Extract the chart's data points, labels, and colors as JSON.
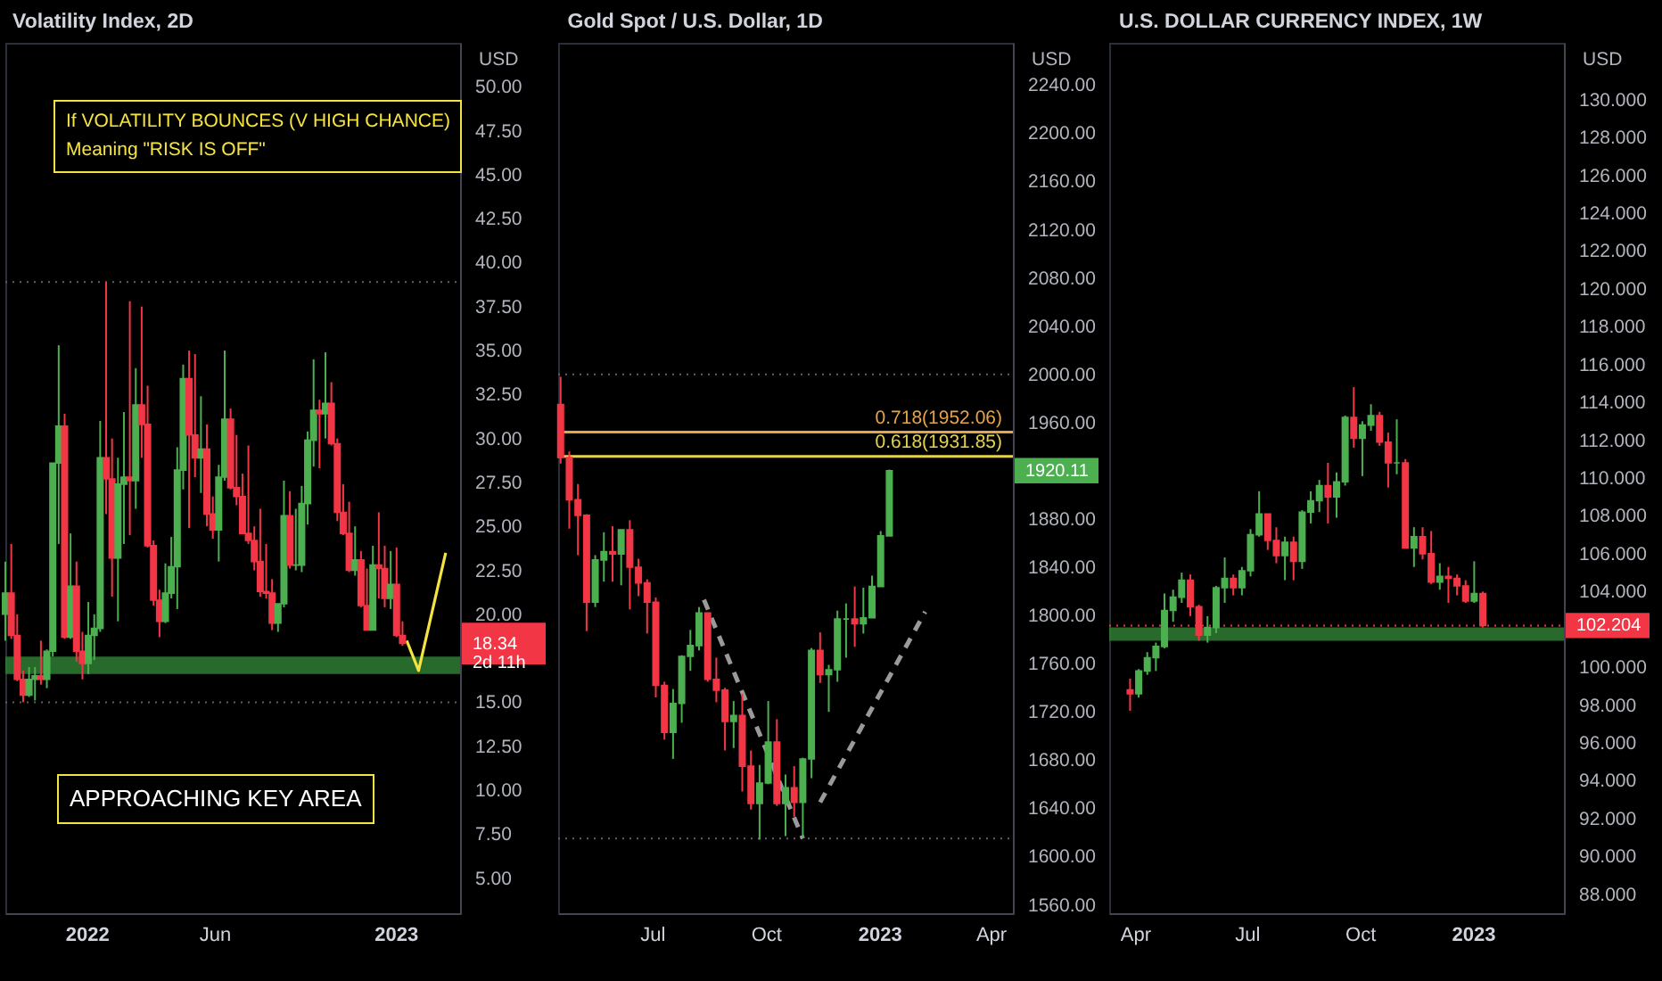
{
  "chart_data": [
    {
      "type": "candlestick",
      "title": "Volatility Index, 2D",
      "ylabel": "USD",
      "x": [
        "2021-09-27",
        "2021-10-04",
        "2021-10-11",
        "2021-10-18",
        "2021-10-25",
        "2021-11-01",
        "2021-11-08",
        "2021-11-15",
        "2021-11-22",
        "2021-11-29",
        "2021-12-06",
        "2021-12-13",
        "2021-12-20",
        "2021-12-27",
        "2022-01-03",
        "2022-01-10",
        "2022-01-17",
        "2022-01-24",
        "2022-01-31",
        "2022-02-07",
        "2022-02-14",
        "2022-02-21",
        "2022-02-28",
        "2022-03-07",
        "2022-03-14",
        "2022-03-21",
        "2022-03-28",
        "2022-04-04",
        "2022-04-11",
        "2022-04-18",
        "2022-04-25",
        "2022-05-02",
        "2022-05-09",
        "2022-05-16",
        "2022-05-23",
        "2022-05-30",
        "2022-06-06",
        "2022-06-13",
        "2022-06-20",
        "2022-06-27",
        "2022-07-04",
        "2022-07-11",
        "2022-07-18",
        "2022-07-25",
        "2022-08-01",
        "2022-08-08",
        "2022-08-15",
        "2022-08-22",
        "2022-08-29",
        "2022-09-05",
        "2022-09-12",
        "2022-09-19",
        "2022-09-26",
        "2022-10-03",
        "2022-10-10",
        "2022-10-17",
        "2022-10-24",
        "2022-10-31",
        "2022-11-07",
        "2022-11-14",
        "2022-11-21",
        "2022-11-28",
        "2022-12-05",
        "2022-12-12",
        "2022-12-19",
        "2022-12-26",
        "2023-01-02",
        "2023-01-09"
      ],
      "ohlc": [
        [
          20.0,
          23.0,
          18.5,
          21.2
        ],
        [
          21.2,
          24.0,
          18.6,
          18.8
        ],
        [
          18.8,
          20.0,
          16.2,
          16.3
        ],
        [
          16.3,
          16.8,
          15.0,
          15.4
        ],
        [
          15.4,
          17.0,
          15.3,
          16.3
        ],
        [
          16.3,
          17.0,
          15.1,
          16.5
        ],
        [
          16.5,
          18.5,
          16.0,
          16.3
        ],
        [
          16.3,
          18.0,
          15.8,
          17.9
        ],
        [
          17.9,
          28.6,
          17.6,
          28.6
        ],
        [
          28.6,
          35.3,
          24.0,
          30.7
        ],
        [
          30.7,
          31.4,
          18.6,
          18.7
        ],
        [
          18.7,
          24.6,
          18.6,
          21.6
        ],
        [
          21.6,
          23.0,
          17.3,
          17.9
        ],
        [
          17.9,
          19.0,
          16.3,
          17.2
        ],
        [
          17.2,
          20.7,
          16.6,
          18.8
        ],
        [
          18.8,
          20.0,
          17.4,
          19.2
        ],
        [
          19.2,
          31.0,
          19.0,
          28.9
        ],
        [
          28.9,
          38.9,
          25.7,
          27.7
        ],
        [
          27.7,
          30.0,
          21.0,
          23.2
        ],
        [
          23.2,
          28.9,
          19.6,
          27.4
        ],
        [
          27.4,
          31.5,
          24.0,
          27.8
        ],
        [
          27.8,
          37.8,
          24.5,
          27.6
        ],
        [
          27.6,
          34.0,
          26.0,
          31.9
        ],
        [
          31.9,
          37.5,
          28.9,
          30.8
        ],
        [
          30.8,
          33.0,
          23.8,
          23.9
        ],
        [
          23.9,
          24.2,
          20.5,
          20.8
        ],
        [
          20.8,
          21.4,
          18.7,
          19.6
        ],
        [
          19.6,
          22.9,
          19.5,
          21.2
        ],
        [
          21.2,
          24.4,
          20.9,
          22.7
        ],
        [
          22.7,
          29.5,
          20.3,
          28.2
        ],
        [
          28.2,
          34.2,
          27.1,
          33.4
        ],
        [
          33.4,
          35.0,
          24.9,
          30.2
        ],
        [
          30.2,
          34.8,
          27.8,
          28.9
        ],
        [
          28.9,
          32.4,
          26.9,
          29.4
        ],
        [
          29.4,
          30.8,
          25.0,
          25.7
        ],
        [
          25.7,
          26.7,
          24.3,
          24.8
        ],
        [
          24.8,
          28.5,
          23.0,
          27.8
        ],
        [
          27.8,
          35.0,
          27.6,
          31.1
        ],
        [
          31.1,
          31.7,
          27.1,
          27.2
        ],
        [
          27.2,
          30.2,
          26.2,
          26.7
        ],
        [
          26.7,
          28.0,
          24.6,
          24.6
        ],
        [
          24.6,
          29.6,
          24.0,
          24.2
        ],
        [
          24.2,
          25.0,
          22.5,
          23.0
        ],
        [
          23.0,
          26.0,
          21.0,
          21.3
        ],
        [
          21.3,
          24.0,
          20.9,
          21.2
        ],
        [
          21.2,
          22.0,
          19.1,
          19.5
        ],
        [
          19.5,
          20.6,
          19.0,
          20.6
        ],
        [
          20.6,
          27.6,
          20.4,
          25.6
        ],
        [
          25.6,
          27.0,
          22.6,
          22.8
        ],
        [
          22.8,
          26.0,
          22.5,
          22.8
        ],
        [
          22.8,
          27.3,
          22.4,
          26.3
        ],
        [
          26.3,
          30.4,
          25.1,
          29.9
        ],
        [
          29.9,
          34.5,
          28.4,
          31.6
        ],
        [
          31.6,
          32.2,
          28.3,
          31.4
        ],
        [
          31.4,
          34.9,
          30.0,
          32.0
        ],
        [
          32.0,
          33.2,
          29.6,
          29.7
        ],
        [
          29.7,
          30.0,
          25.3,
          25.8
        ],
        [
          25.8,
          27.4,
          24.5,
          24.6
        ],
        [
          24.6,
          26.4,
          22.4,
          22.5
        ],
        [
          22.5,
          25.0,
          22.2,
          23.1
        ],
        [
          23.1,
          23.6,
          20.4,
          20.5
        ],
        [
          20.5,
          22.6,
          19.1,
          19.1
        ],
        [
          19.1,
          23.9,
          19.1,
          22.8
        ],
        [
          22.8,
          25.8,
          20.9,
          22.6
        ],
        [
          22.6,
          23.9,
          20.4,
          20.9
        ],
        [
          20.9,
          23.6,
          20.3,
          21.7
        ],
        [
          21.7,
          23.8,
          18.7,
          18.8
        ],
        [
          18.8,
          19.6,
          18.2,
          18.34
        ]
      ],
      "series": [
        {
          "type": "line",
          "color": "#f5e342",
          "line_style": "solid",
          "x": [
            "2023-01-14",
            "2023-01-28",
            "2023-03-01"
          ],
          "values": [
            18.5,
            16.8,
            23.5
          ]
        }
      ],
      "xlim": [
        "2021-09-27",
        "2023-03-18"
      ],
      "xticks": [
        {
          "value": "2022-01-01",
          "label": "2022"
        },
        {
          "value": "2022-06-01",
          "label": "Jun"
        },
        {
          "value": "2023-01-01",
          "label": "2023"
        }
      ],
      "ylim": [
        3,
        52.5
      ],
      "yticks": [
        {
          "value": 5,
          "label": "5.00"
        },
        {
          "value": 7.5,
          "label": "7.50"
        },
        {
          "value": 10,
          "label": "10.00"
        },
        {
          "value": 12.5,
          "label": "12.50"
        },
        {
          "value": 15,
          "label": "15.00"
        },
        {
          "value": 20,
          "label": "20.00"
        },
        {
          "value": 22.5,
          "label": "22.50"
        },
        {
          "value": 25,
          "label": "25.00"
        },
        {
          "value": 27.5,
          "label": "27.50"
        },
        {
          "value": 30,
          "label": "30.00"
        },
        {
          "value": 32.5,
          "label": "32.50"
        },
        {
          "value": 35,
          "label": "35.00"
        },
        {
          "value": 37.5,
          "label": "37.50"
        },
        {
          "value": 40,
          "label": "40.00"
        },
        {
          "value": 42.5,
          "label": "42.50"
        },
        {
          "value": 45,
          "label": "45.00"
        },
        {
          "value": 47.5,
          "label": "47.50"
        },
        {
          "value": 50,
          "label": "50.00"
        }
      ],
      "bands": [
        {
          "axis": "y",
          "from": 16.6,
          "to": 17.6,
          "color": "#2e7d32"
        }
      ],
      "ref_lines": [
        {
          "axis": "y",
          "value": 38.9,
          "color": "#5d606b",
          "line_style": "dotted"
        },
        {
          "axis": "y",
          "value": 15,
          "color": "#5d606b",
          "line_style": "dotted"
        }
      ],
      "annotations": [
        "If VOLATILITY BOUNCES (V HIGH CHANCE)",
        "Meaning \"RISK IS OFF\"",
        "APPROACHING KEY AREA",
        "18.34\n2d 11h"
      ]
    },
    {
      "type": "candlestick",
      "title": "Gold Spot / U.S. Dollar, 1D",
      "ylabel": "USD",
      "x": [
        "2022-04-18",
        "2022-04-25",
        "2022-05-02",
        "2022-05-09",
        "2022-05-16",
        "2022-05-23",
        "2022-05-30",
        "2022-06-06",
        "2022-06-13",
        "2022-06-20",
        "2022-06-27",
        "2022-07-04",
        "2022-07-11",
        "2022-07-18",
        "2022-07-25",
        "2022-08-01",
        "2022-08-08",
        "2022-08-15",
        "2022-08-22",
        "2022-08-29",
        "2022-09-05",
        "2022-09-12",
        "2022-09-19",
        "2022-09-26",
        "2022-10-03",
        "2022-10-10",
        "2022-10-17",
        "2022-10-24",
        "2022-10-31",
        "2022-11-07",
        "2022-11-14",
        "2022-11-21",
        "2022-11-28",
        "2022-12-05",
        "2022-12-12",
        "2022-12-19",
        "2022-12-26",
        "2023-01-02",
        "2023-01-09"
      ],
      "ohlc": [
        [
          1975,
          1998,
          1926,
          1931
        ],
        [
          1931,
          1936,
          1872,
          1896
        ],
        [
          1896,
          1909,
          1850,
          1883
        ],
        [
          1883,
          1884,
          1787,
          1811
        ],
        [
          1811,
          1850,
          1807,
          1846
        ],
        [
          1846,
          1869,
          1828,
          1853
        ],
        [
          1853,
          1874,
          1828,
          1851
        ],
        [
          1851,
          1871,
          1825,
          1871
        ],
        [
          1871,
          1879,
          1805,
          1840
        ],
        [
          1840,
          1847,
          1816,
          1827
        ],
        [
          1827,
          1830,
          1785,
          1811
        ],
        [
          1811,
          1815,
          1732,
          1742
        ],
        [
          1742,
          1745,
          1697,
          1703
        ],
        [
          1703,
          1739,
          1681,
          1727
        ],
        [
          1727,
          1767,
          1711,
          1766
        ],
        [
          1766,
          1788,
          1754,
          1775
        ],
        [
          1775,
          1807,
          1771,
          1802
        ],
        [
          1802,
          1802,
          1745,
          1747
        ],
        [
          1747,
          1765,
          1728,
          1738
        ],
        [
          1738,
          1740,
          1688,
          1712
        ],
        [
          1712,
          1729,
          1690,
          1717
        ],
        [
          1717,
          1735,
          1654,
          1675
        ],
        [
          1675,
          1688,
          1639,
          1644
        ],
        [
          1644,
          1676,
          1614,
          1661
        ],
        [
          1661,
          1729,
          1660,
          1695
        ],
        [
          1695,
          1714,
          1642,
          1644
        ],
        [
          1644,
          1668,
          1617,
          1657
        ],
        [
          1657,
          1675,
          1633,
          1645
        ],
        [
          1645,
          1682,
          1616,
          1681
        ],
        [
          1681,
          1773,
          1665,
          1771
        ],
        [
          1771,
          1786,
          1744,
          1751
        ],
        [
          1751,
          1759,
          1720,
          1755
        ],
        [
          1755,
          1804,
          1745,
          1797
        ],
        [
          1797,
          1810,
          1765,
          1797
        ],
        [
          1797,
          1824,
          1774,
          1793
        ],
        [
          1793,
          1823,
          1785,
          1798
        ],
        [
          1798,
          1833,
          1798,
          1824
        ],
        [
          1824,
          1870,
          1824,
          1866
        ],
        [
          1866,
          1921,
          1866,
          1920.11
        ]
      ],
      "series": [
        {
          "type": "line",
          "color": "#9a9a9a",
          "line_style": "dashed",
          "x": [
            "2022-08-12",
            "2022-10-31"
          ],
          "values": [
            1813,
            1615
          ]
        },
        {
          "type": "line",
          "color": "#9a9a9a",
          "line_style": "dashed",
          "x": [
            "2022-11-14",
            "2023-02-07"
          ],
          "values": [
            1645,
            1803
          ]
        }
      ],
      "xlim": [
        "2022-04-16",
        "2023-04-19"
      ],
      "xticks": [
        {
          "value": "2022-07-01",
          "label": "Jul"
        },
        {
          "value": "2022-10-01",
          "label": "Oct"
        },
        {
          "value": "2023-01-01",
          "label": "2023"
        },
        {
          "value": "2023-04-01",
          "label": "Apr"
        }
      ],
      "ylim": [
        1553,
        2275
      ],
      "yticks": [
        {
          "value": 1560,
          "label": "1560.00"
        },
        {
          "value": 1600,
          "label": "1600.00"
        },
        {
          "value": 1640,
          "label": "1640.00"
        },
        {
          "value": 1680,
          "label": "1680.00"
        },
        {
          "value": 1720,
          "label": "1720.00"
        },
        {
          "value": 1760,
          "label": "1760.00"
        },
        {
          "value": 1800,
          "label": "1800.00"
        },
        {
          "value": 1840,
          "label": "1840.00"
        },
        {
          "value": 1880,
          "label": "1880.00"
        },
        {
          "value": 1960,
          "label": "1960.00"
        },
        {
          "value": 2000,
          "label": "2000.00"
        },
        {
          "value": 2040,
          "label": "2040.00"
        },
        {
          "value": 2080,
          "label": "2080.00"
        },
        {
          "value": 2120,
          "label": "2120.00"
        },
        {
          "value": 2160,
          "label": "2160.00"
        },
        {
          "value": 2200,
          "label": "2200.00"
        },
        {
          "value": 2240,
          "label": "2240.00"
        }
      ],
      "ref_lines": [
        {
          "axis": "y",
          "value": 2000,
          "color": "#5d606b",
          "line_style": "dotted"
        },
        {
          "axis": "y",
          "value": 1615,
          "color": "#5d606b",
          "line_style": "dotted"
        },
        {
          "axis": "y",
          "value": 1952.06,
          "label": "0.718(1952.06)",
          "color": "#e5a44a",
          "line_style": "solid"
        },
        {
          "axis": "y",
          "value": 1931.85,
          "label": "0.618(1931.85)",
          "color": "#e6d34a",
          "line_style": "solid"
        }
      ],
      "annotations": [
        "1920.11"
      ]
    },
    {
      "type": "candlestick",
      "title": "U.S. DOLLAR CURRENCY INDEX, 1W",
      "ylabel": "USD",
      "x": [
        "2022-03-28",
        "2022-04-04",
        "2022-04-11",
        "2022-04-18",
        "2022-04-25",
        "2022-05-02",
        "2022-05-09",
        "2022-05-16",
        "2022-05-23",
        "2022-05-30",
        "2022-06-06",
        "2022-06-13",
        "2022-06-20",
        "2022-06-27",
        "2022-07-04",
        "2022-07-11",
        "2022-07-18",
        "2022-07-25",
        "2022-08-01",
        "2022-08-08",
        "2022-08-15",
        "2022-08-22",
        "2022-08-29",
        "2022-09-05",
        "2022-09-12",
        "2022-09-19",
        "2022-09-26",
        "2022-10-03",
        "2022-10-10",
        "2022-10-17",
        "2022-10-24",
        "2022-10-31",
        "2022-11-07",
        "2022-11-14",
        "2022-11-21",
        "2022-11-28",
        "2022-12-05",
        "2022-12-12",
        "2022-12-19",
        "2022-12-26",
        "2023-01-02",
        "2023-01-09"
      ],
      "ohlc": [
        [
          98.8,
          99.4,
          97.7,
          98.6
        ],
        [
          98.6,
          99.9,
          98.4,
          99.8
        ],
        [
          99.8,
          100.8,
          99.6,
          100.5
        ],
        [
          100.5,
          101.3,
          99.8,
          101.1
        ],
        [
          101.1,
          103.9,
          101.0,
          103.0
        ],
        [
          103.0,
          104.1,
          102.4,
          103.7
        ],
        [
          103.7,
          105.0,
          103.4,
          104.6
        ],
        [
          104.6,
          104.9,
          102.7,
          103.2
        ],
        [
          103.2,
          103.3,
          101.4,
          101.7
        ],
        [
          101.7,
          102.7,
          101.3,
          102.1
        ],
        [
          102.1,
          104.3,
          101.8,
          104.2
        ],
        [
          104.2,
          105.8,
          103.4,
          104.7
        ],
        [
          104.7,
          104.9,
          103.8,
          104.2
        ],
        [
          104.2,
          105.3,
          103.8,
          105.1
        ],
        [
          105.1,
          107.3,
          104.8,
          107.0
        ],
        [
          107.0,
          109.3,
          106.9,
          108.1
        ],
        [
          108.1,
          108.1,
          106.2,
          106.7
        ],
        [
          106.7,
          107.4,
          105.5,
          105.9
        ],
        [
          105.9,
          106.9,
          104.6,
          106.6
        ],
        [
          106.6,
          106.9,
          104.6,
          105.6
        ],
        [
          105.6,
          108.3,
          105.2,
          108.2
        ],
        [
          108.2,
          109.3,
          107.6,
          108.8
        ],
        [
          108.8,
          109.9,
          108.2,
          109.6
        ],
        [
          109.6,
          110.8,
          107.6,
          109.0
        ],
        [
          109.0,
          110.3,
          107.9,
          109.8
        ],
        [
          109.8,
          113.3,
          109.6,
          113.2
        ],
        [
          113.2,
          114.8,
          111.6,
          112.1
        ],
        [
          112.1,
          113.0,
          110.1,
          112.8
        ],
        [
          112.8,
          113.9,
          112.5,
          113.3
        ],
        [
          113.3,
          113.5,
          111.7,
          111.9
        ],
        [
          111.9,
          112.4,
          109.5,
          110.8
        ],
        [
          110.8,
          113.1,
          110.2,
          110.8
        ],
        [
          110.8,
          111.0,
          106.3,
          106.3
        ],
        [
          106.3,
          107.4,
          105.3,
          106.9
        ],
        [
          106.9,
          107.4,
          105.7,
          106.0
        ],
        [
          106.0,
          107.2,
          104.4,
          104.5
        ],
        [
          104.5,
          105.5,
          104.1,
          104.8
        ],
        [
          104.8,
          105.3,
          103.4,
          104.7
        ],
        [
          104.7,
          104.9,
          103.8,
          104.3
        ],
        [
          104.3,
          104.6,
          103.4,
          103.5
        ],
        [
          103.5,
          105.6,
          103.4,
          103.9
        ],
        [
          103.9,
          104.0,
          102.1,
          102.204
        ]
      ],
      "xlim": [
        "2022-03-11",
        "2023-03-16"
      ],
      "xticks": [
        {
          "value": "2022-04-01",
          "label": "Apr"
        },
        {
          "value": "2022-07-01",
          "label": "Jul"
        },
        {
          "value": "2022-10-01",
          "label": "Oct"
        },
        {
          "value": "2023-01-01",
          "label": "2023"
        }
      ],
      "ylim": [
        87,
        133
      ],
      "yticks": [
        {
          "value": 88,
          "label": "88.000"
        },
        {
          "value": 90,
          "label": "90.000"
        },
        {
          "value": 92,
          "label": "92.000"
        },
        {
          "value": 94,
          "label": "94.000"
        },
        {
          "value": 96,
          "label": "96.000"
        },
        {
          "value": 98,
          "label": "98.000"
        },
        {
          "value": 100,
          "label": "100.000"
        },
        {
          "value": 104,
          "label": "104.000"
        },
        {
          "value": 106,
          "label": "106.000"
        },
        {
          "value": 108,
          "label": "108.000"
        },
        {
          "value": 110,
          "label": "110.000"
        },
        {
          "value": 112,
          "label": "112.000"
        },
        {
          "value": 114,
          "label": "114.000"
        },
        {
          "value": 116,
          "label": "116.000"
        },
        {
          "value": 118,
          "label": "118.000"
        },
        {
          "value": 120,
          "label": "120.000"
        },
        {
          "value": 122,
          "label": "122.000"
        },
        {
          "value": 124,
          "label": "124.000"
        },
        {
          "value": 126,
          "label": "126.000"
        },
        {
          "value": 128,
          "label": "128.000"
        },
        {
          "value": 130,
          "label": "130.000"
        }
      ],
      "bands": [
        {
          "axis": "y",
          "from": 101.4,
          "to": 102.1,
          "color": "#2e7d32"
        }
      ],
      "ref_lines": [
        {
          "axis": "y",
          "value": 102.204,
          "color": "#f23645",
          "line_style": "dotted"
        }
      ],
      "annotations": [
        "102.204"
      ]
    }
  ]
}
